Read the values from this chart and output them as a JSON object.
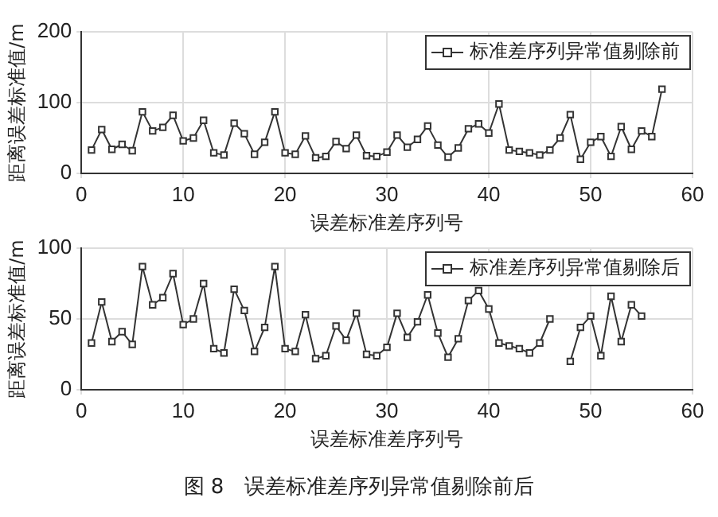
{
  "chart_data": [
    {
      "type": "line",
      "xlabel": "误差标准差序列号",
      "ylabel": "距离误差标准值/m",
      "x": [
        1,
        2,
        3,
        4,
        5,
        6,
        7,
        8,
        9,
        10,
        11,
        12,
        13,
        14,
        15,
        16,
        17,
        18,
        19,
        20,
        21,
        22,
        23,
        24,
        25,
        26,
        27,
        28,
        29,
        30,
        31,
        32,
        33,
        34,
        35,
        36,
        37,
        38,
        39,
        40,
        41,
        42,
        43,
        44,
        45,
        46,
        47,
        48,
        49,
        50,
        51,
        52,
        53,
        54,
        55,
        56,
        57
      ],
      "series": [
        {
          "name": "标准差序列异常值剔除前",
          "color": "#333333",
          "values": [
            33,
            62,
            34,
            41,
            32,
            87,
            60,
            65,
            82,
            46,
            50,
            75,
            29,
            26,
            71,
            56,
            27,
            44,
            87,
            29,
            27,
            53,
            22,
            24,
            45,
            35,
            54,
            25,
            24,
            30,
            54,
            37,
            48,
            67,
            40,
            23,
            36,
            63,
            70,
            57,
            98,
            33,
            31,
            29,
            26,
            33,
            50,
            83,
            20,
            44,
            52,
            24,
            66,
            34,
            60,
            52,
            119
          ]
        }
      ],
      "xlim": [
        0,
        60
      ],
      "xticks": [
        0,
        10,
        20,
        30,
        40,
        50,
        60
      ],
      "ylim": [
        0,
        200
      ],
      "yticks": [
        0,
        100,
        200
      ],
      "grid": true,
      "legend": "top right",
      "marker": "square",
      "line_style": "solid"
    },
    {
      "type": "line",
      "xlabel": "误差标准差序列号",
      "ylabel": "距离误差标准值/m",
      "x": [
        1,
        2,
        3,
        4,
        5,
        6,
        7,
        8,
        9,
        10,
        11,
        12,
        13,
        14,
        15,
        16,
        17,
        18,
        19,
        20,
        21,
        22,
        23,
        24,
        25,
        26,
        27,
        28,
        29,
        30,
        31,
        32,
        33,
        34,
        35,
        36,
        37,
        38,
        39,
        40,
        41,
        42,
        43,
        44,
        45,
        46,
        47,
        48,
        49,
        50,
        51,
        52,
        53,
        54,
        55
      ],
      "series": [
        {
          "name": "标准差序列异常值剔除后",
          "color": "#333333",
          "values": [
            33,
            62,
            34,
            41,
            32,
            87,
            60,
            65,
            82,
            46,
            50,
            75,
            29,
            26,
            71,
            56,
            27,
            44,
            87,
            29,
            27,
            53,
            22,
            24,
            45,
            35,
            54,
            25,
            24,
            30,
            54,
            37,
            48,
            67,
            40,
            23,
            36,
            63,
            70,
            57,
            33,
            31,
            29,
            26,
            33,
            50,
            null,
            20,
            44,
            52,
            24,
            66,
            34,
            60,
            52
          ]
        }
      ],
      "xlim": [
        0,
        60
      ],
      "xticks": [
        0,
        10,
        20,
        30,
        40,
        50,
        60
      ],
      "ylim": [
        0,
        100
      ],
      "yticks": [
        0,
        50,
        100
      ],
      "grid": true,
      "legend": "top right",
      "marker": "square",
      "line_style": "solid",
      "annotations": [
        "图 8　误差标准差序列异常值剔除前后"
      ]
    }
  ]
}
